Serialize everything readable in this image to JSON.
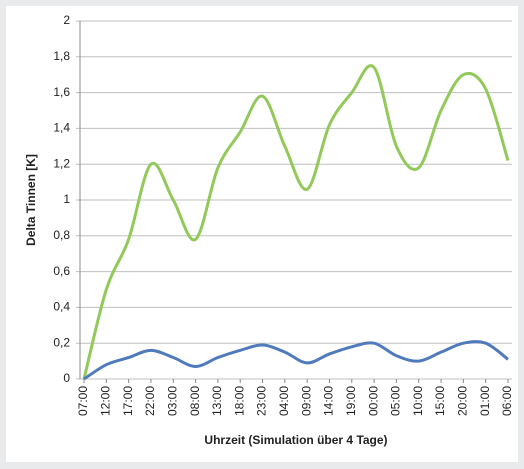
{
  "chart_data": {
    "type": "line",
    "y_label": "Delta Tinnen [K]",
    "x_label": "Uhrzeit (Simulation über 4 Tage)",
    "categories": [
      "07:00",
      "12:00",
      "17:00",
      "22:00",
      "03:00",
      "08:00",
      "13:00",
      "18:00",
      "23:00",
      "04:00",
      "09:00",
      "14:00",
      "19:00",
      "00:00",
      "05:00",
      "10:00",
      "15:00",
      "20:00",
      "01:00",
      "06:00"
    ],
    "series": [
      {
        "color": "#92c95a",
        "values": [
          0,
          0.5,
          0.78,
          1.2,
          1.0,
          0.78,
          1.18,
          1.38,
          1.58,
          1.3,
          1.06,
          1.42,
          1.6,
          1.74,
          1.3,
          1.18,
          1.5,
          1.7,
          1.62,
          1.22
        ]
      },
      {
        "color": "#4f7bbd",
        "values": [
          0,
          0.08,
          0.12,
          0.16,
          0.12,
          0.07,
          0.12,
          0.16,
          0.19,
          0.15,
          0.09,
          0.14,
          0.18,
          0.2,
          0.13,
          0.1,
          0.15,
          0.2,
          0.2,
          0.11
        ]
      }
    ],
    "ylim": [
      0,
      2
    ],
    "yticks": [
      0,
      {
        "value": 0.2,
        "label": "0,2"
      },
      {
        "value": 0.4,
        "label": "0,4"
      },
      {
        "value": 0.6,
        "label": "0,6"
      },
      {
        "value": 0.8,
        "label": "0,8"
      },
      1,
      {
        "value": 1.2,
        "label": "1,2"
      },
      {
        "value": 1.4,
        "label": "1,4"
      },
      {
        "value": 1.6,
        "label": "1,6"
      },
      {
        "value": 1.8,
        "label": "1,8"
      },
      2
    ],
    "grid": true
  }
}
